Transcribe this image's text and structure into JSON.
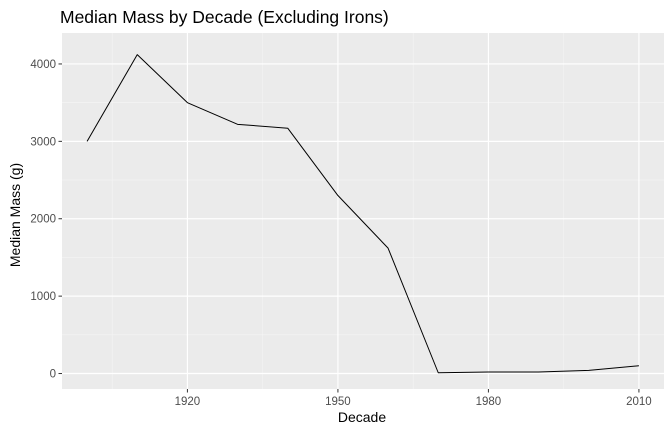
{
  "chart_data": {
    "type": "line",
    "title": "Median Mass by Decade (Excluding Irons)",
    "xlabel": "Decade",
    "ylabel": "Median Mass (g)",
    "x": [
      1900,
      1910,
      1920,
      1930,
      1940,
      1950,
      1960,
      1970,
      1980,
      1990,
      2000,
      2010
    ],
    "series": [
      {
        "values": [
          3000,
          4120,
          3500,
          3220,
          3170,
          2300,
          1620,
          10,
          20,
          20,
          40,
          100
        ]
      }
    ],
    "xlim": [
      1895,
      2015
    ],
    "ylim": [
      -200,
      4400
    ],
    "x_ticks": [
      1920,
      1950,
      1980,
      2010
    ],
    "x_tick_labels": [
      "1920",
      "1950",
      "1980",
      "2010"
    ],
    "x_minor_ticks": [
      1905,
      1935,
      1965,
      1995
    ],
    "y_ticks": [
      0,
      1000,
      2000,
      3000,
      4000
    ],
    "y_tick_labels": [
      "0",
      "1000",
      "2000",
      "3000",
      "4000"
    ],
    "y_minor_ticks": [
      500,
      1500,
      2500,
      3500
    ],
    "grid": true,
    "colors": {
      "panel": "#ebebeb",
      "grid_major": "#ffffff",
      "grid_minor": "#f5f5f5",
      "line": "#000000",
      "tick": "#333333"
    }
  }
}
